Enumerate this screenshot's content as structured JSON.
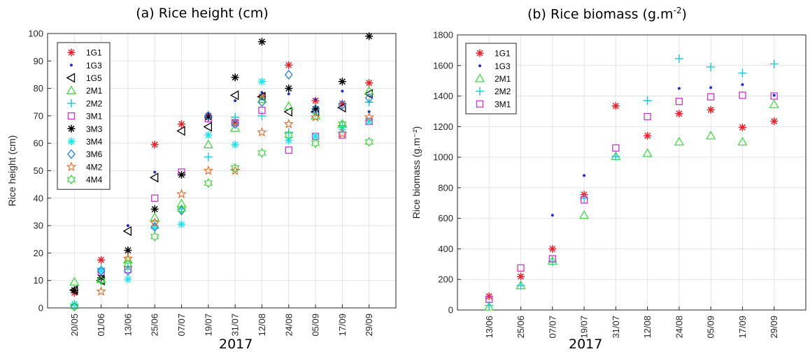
{
  "chart_data": [
    {
      "type": "scatter",
      "title_prefix": "(a) Rice height (cm)",
      "title_sup": "",
      "title_suffix": "",
      "xlabel": "2017",
      "ylabel": "Rice height (cm)",
      "ylim": [
        0,
        100
      ],
      "yticks": [
        0,
        10,
        20,
        30,
        40,
        50,
        60,
        70,
        80,
        90,
        100
      ],
      "categories": [
        "20/05",
        "01/06",
        "13/06",
        "25/06",
        "07/07",
        "19/07",
        "31/07",
        "12/08",
        "24/08",
        "05/09",
        "17/09",
        "29/09"
      ],
      "grid": true,
      "legend_position": "top-left",
      "series": [
        {
          "name": "1G1",
          "marker": "asterisk",
          "color": "#e8202a",
          "values": [
            5.5,
            17.5,
            null,
            59.5,
            67,
            70,
            67.5,
            77,
            88.5,
            75.5,
            74.5,
            82
          ]
        },
        {
          "name": "1G3",
          "marker": "dot",
          "color": "#1f2fbf",
          "values": [
            null,
            null,
            30,
            49.5,
            null,
            71,
            75.5,
            78.5,
            78,
            76,
            79,
            71.5
          ]
        },
        {
          "name": "1G5",
          "marker": "triangle-left",
          "color": "#000000",
          "values": [
            6.5,
            10,
            28,
            47.5,
            64.5,
            66,
            77.5,
            77,
            71.5,
            71.5,
            73,
            78
          ]
        },
        {
          "name": "2M1",
          "marker": "triangle-up",
          "color": "#49d649",
          "values": [
            9.5,
            10.5,
            17.5,
            33,
            38,
            59.5,
            65.5,
            76,
            73.5,
            70,
            67,
            79
          ]
        },
        {
          "name": "2M2",
          "marker": "plus",
          "color": "#1ac4d4",
          "values": [
            1,
            14.5,
            15,
            29,
            36,
            55,
            69.5,
            70,
            64,
            71,
            66.5,
            75
          ]
        },
        {
          "name": "3M1",
          "marker": "square",
          "color": "#cc33cc",
          "values": [
            null,
            13,
            14,
            40,
            49.5,
            69,
            67.5,
            72,
            57.5,
            62.5,
            63,
            68
          ]
        },
        {
          "name": "3M3",
          "marker": "asterisk",
          "color": "#000000",
          "values": [
            6.5,
            11,
            21,
            36,
            48.5,
            69.5,
            84,
            97,
            80,
            72.5,
            82.5,
            99
          ]
        },
        {
          "name": "3M4",
          "marker": "asterisk",
          "color": "#1ae0f0",
          "values": [
            1.5,
            13.5,
            10.5,
            30,
            30.5,
            63,
            59.5,
            82.5,
            61,
            62.5,
            65,
            68
          ]
        },
        {
          "name": "3M6",
          "marker": "diamond",
          "color": "#2f7fd6",
          "values": [
            0.5,
            13.5,
            13.5,
            29.5,
            35.5,
            70,
            67,
            75,
            85,
            72.5,
            74,
            76.5
          ]
        },
        {
          "name": "4M2",
          "marker": "star",
          "color": "#e06a2a",
          "values": [
            null,
            6,
            18,
            31,
            41.5,
            50,
            50,
            64,
            67,
            69.5,
            63.5,
            69.5
          ]
        },
        {
          "name": "4M4",
          "marker": "hexagram",
          "color": "#3fd03f",
          "values": [
            0.5,
            10,
            16,
            26,
            36,
            45.5,
            51,
            56.5,
            63,
            60,
            67,
            60.5
          ]
        }
      ]
    },
    {
      "type": "scatter",
      "title_prefix": "(b) Rice biomass (g.m",
      "title_sup": "-2",
      "title_suffix": ")",
      "xlabel": "2017",
      "ylabel": "Rice biomass (g.m⁻²)",
      "ylim": [
        0,
        1800
      ],
      "yticks": [
        0,
        200,
        400,
        600,
        800,
        1000,
        1200,
        1400,
        1600,
        1800
      ],
      "categories": [
        "13/06",
        "25/06",
        "07/07",
        "19/07",
        "31/07",
        "12/08",
        "24/08",
        "05/09",
        "17/09",
        "29/09"
      ],
      "grid": true,
      "legend_position": "top-left",
      "series": [
        {
          "name": "1G1",
          "marker": "asterisk",
          "color": "#e8202a",
          "values": [
            90,
            220,
            400,
            755,
            1335,
            1140,
            1285,
            1310,
            1195,
            1235
          ]
        },
        {
          "name": "1G3",
          "marker": "dot",
          "color": "#1f2fbf",
          "values": [
            null,
            null,
            620,
            880,
            null,
            null,
            1450,
            1455,
            1475,
            1405
          ]
        },
        {
          "name": "2M1",
          "marker": "triangle-up",
          "color": "#49d649",
          "values": [
            20,
            160,
            320,
            620,
            1005,
            1025,
            1100,
            1140,
            1100,
            1345
          ]
        },
        {
          "name": "2M2",
          "marker": "plus",
          "color": "#1ac4d4",
          "values": [
            30,
            160,
            315,
            730,
            1005,
            1370,
            1645,
            1590,
            1550,
            1610
          ]
        },
        {
          "name": "3M1",
          "marker": "square",
          "color": "#cc33cc",
          "values": [
            70,
            275,
            335,
            720,
            1060,
            1265,
            1365,
            1395,
            1405,
            1400
          ]
        }
      ]
    }
  ]
}
